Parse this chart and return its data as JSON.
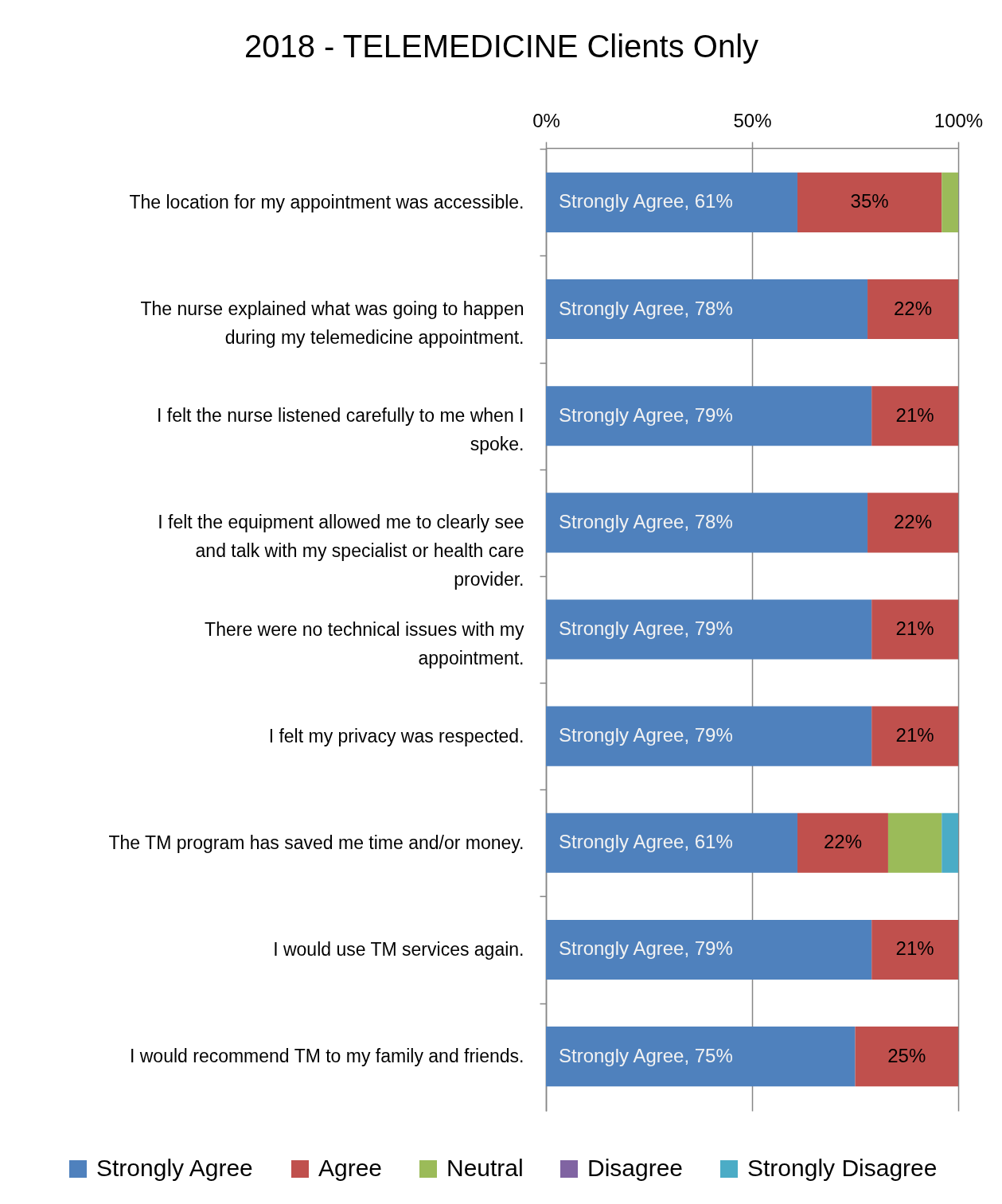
{
  "chart_data": {
    "type": "bar",
    "orientation": "horizontal",
    "stacked": true,
    "title": "2018 - TELEMEDICINE Clients Only",
    "categories": [
      "The location for my appointment was accessible.",
      "The nurse explained what was going to happen during my telemedicine appointment.",
      "I felt the nurse listened carefully to me when I spoke.",
      "I felt the equipment allowed me to clearly see and talk with my specialist or health care provider.",
      "There were no technical issues with my appointment.",
      "I felt my privacy was respected.",
      "The TM program has saved me time and/or money.",
      "I would use TM services again.",
      "I would recommend TM to my family and friends."
    ],
    "xlim": [
      0,
      100
    ],
    "xticks": [
      {
        "value": 0,
        "label": "0%"
      },
      {
        "value": 50,
        "label": "50%"
      },
      {
        "value": 100,
        "label": "100%"
      }
    ],
    "grid": "x",
    "legend": "bottom",
    "series": [
      {
        "name": "Strongly Agree",
        "color": "#4f81bd",
        "values": [
          61,
          78,
          79,
          78,
          79,
          79,
          61,
          79,
          75
        ],
        "value_labels": [
          "Strongly Agree, 61%",
          "Strongly Agree, 78%",
          "Strongly Agree, 79%",
          "Strongly Agree, 78%",
          "Strongly Agree, 79%",
          "Strongly Agree, 79%",
          "Strongly Agree, 61%",
          "Strongly Agree, 79%",
          "Strongly Agree, 75%"
        ]
      },
      {
        "name": "Agree",
        "color": "#c0504d",
        "values": [
          35,
          22,
          21,
          22,
          21,
          21,
          22,
          21,
          25
        ],
        "value_labels": [
          "35%",
          "22%",
          "21%",
          "22%",
          "21%",
          "21%",
          "22%",
          "21%",
          "25%"
        ]
      },
      {
        "name": "Neutral",
        "color": "#9bbb59",
        "values": [
          4,
          null,
          null,
          null,
          null,
          null,
          13,
          null,
          null
        ]
      },
      {
        "name": "Disagree",
        "color": "#8064a2",
        "values": [
          null,
          null,
          null,
          null,
          null,
          null,
          null,
          null,
          null
        ]
      },
      {
        "name": "Strongly Disagree",
        "color": "#4bacc6",
        "values": [
          null,
          null,
          null,
          null,
          null,
          null,
          4,
          null,
          null
        ]
      }
    ]
  }
}
